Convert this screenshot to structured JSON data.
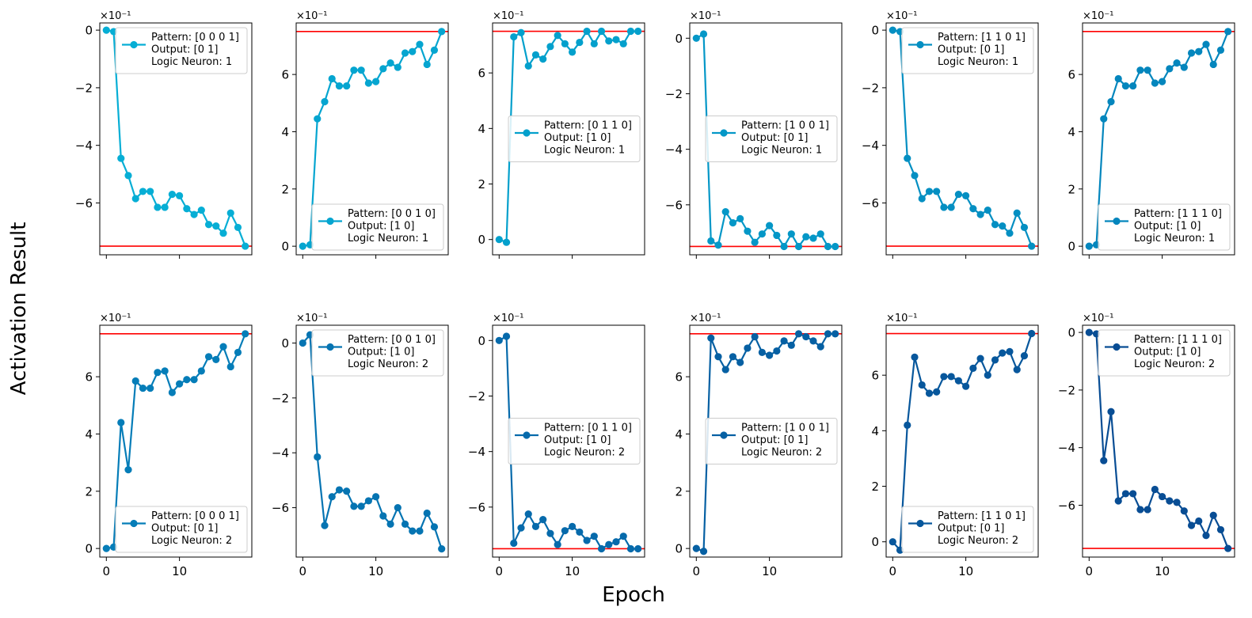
{
  "figure": {
    "xlabel": "Epoch",
    "ylabel": "Activation Result",
    "colors": {
      "threshold": "#ff0000",
      "row1_base": "#00a8cc",
      "row2_base": "#0b4f8f"
    }
  },
  "chart_data": [
    {
      "type": "line",
      "row": 0,
      "col": 0,
      "color": "#06aed5",
      "ylim": [
        -7.8,
        0.25
      ],
      "yticks": [
        0,
        -2,
        -4,
        -6
      ],
      "ytick_labels": [
        "0",
        "−2",
        "−4",
        "−6"
      ],
      "exponent_label": "×10⁻¹",
      "hlines": [
        -7.5
      ],
      "legend": [
        "Pattern: [0 0 0 1]",
        "Output: [0 1]",
        "Logic Neuron: 1"
      ],
      "legend_loc": "upper right",
      "x": [
        0,
        1,
        2,
        3,
        4,
        5,
        6,
        7,
        8,
        9,
        10,
        11,
        12,
        13,
        14,
        15,
        16,
        17,
        18,
        19
      ],
      "values": [
        0,
        -0.05,
        -4.45,
        -5.05,
        -5.85,
        -5.6,
        -5.6,
        -6.15,
        -6.15,
        -5.7,
        -5.75,
        -6.2,
        -6.4,
        -6.25,
        -6.75,
        -6.8,
        -7.05,
        -6.35,
        -6.85,
        -7.5
      ]
    },
    {
      "type": "line",
      "row": 0,
      "col": 1,
      "color": "#05a5d0",
      "ylim": [
        -0.3,
        7.8
      ],
      "yticks": [
        0,
        2,
        4,
        6
      ],
      "ytick_labels": [
        "0",
        "2",
        "4",
        "6"
      ],
      "exponent_label": "×10⁻¹",
      "hlines": [
        7.5
      ],
      "legend": [
        "Pattern: [0 0 1 0]",
        "Output: [1 0]",
        "Logic Neuron: 1"
      ],
      "legend_loc": "lower right",
      "x": [
        0,
        1,
        2,
        3,
        4,
        5,
        6,
        7,
        8,
        9,
        10,
        11,
        12,
        13,
        14,
        15,
        16,
        17,
        18,
        19
      ],
      "values": [
        0,
        0.05,
        4.45,
        5.05,
        5.85,
        5.6,
        5.6,
        6.15,
        6.15,
        5.7,
        5.75,
        6.2,
        6.4,
        6.25,
        6.75,
        6.8,
        7.05,
        6.35,
        6.85,
        7.5
      ]
    },
    {
      "type": "line",
      "row": 0,
      "col": 2,
      "color": "#03a0cc",
      "ylim": [
        -0.55,
        7.8
      ],
      "yticks": [
        0,
        2,
        4,
        6
      ],
      "ytick_labels": [
        "0",
        "2",
        "4",
        "6"
      ],
      "exponent_label": "×10⁻¹",
      "hlines": [
        7.5
      ],
      "legend": [
        "Pattern: [0 1 1 0]",
        "Output: [1 0]",
        "Logic Neuron: 1"
      ],
      "legend_loc": "center right",
      "x": [
        0,
        1,
        2,
        3,
        4,
        5,
        6,
        7,
        8,
        9,
        10,
        11,
        12,
        13,
        14,
        15,
        16,
        17,
        18,
        19
      ],
      "values": [
        0,
        -0.1,
        7.3,
        7.45,
        6.25,
        6.65,
        6.5,
        6.95,
        7.35,
        7.05,
        6.75,
        7.1,
        7.5,
        7.05,
        7.5,
        7.15,
        7.2,
        7.05,
        7.5,
        7.5
      ]
    },
    {
      "type": "line",
      "row": 0,
      "col": 3,
      "color": "#0497c7",
      "ylim": [
        -7.8,
        0.55
      ],
      "yticks": [
        0,
        -2,
        -4,
        -6
      ],
      "ytick_labels": [
        "0",
        "−2",
        "−4",
        "−6"
      ],
      "exponent_label": "×10⁻¹",
      "hlines": [
        -7.5
      ],
      "legend": [
        "Pattern: [1 0 0 1]",
        "Output: [0 1]",
        "Logic Neuron: 1"
      ],
      "legend_loc": "center right",
      "x": [
        0,
        1,
        2,
        3,
        4,
        5,
        6,
        7,
        8,
        9,
        10,
        11,
        12,
        13,
        14,
        15,
        16,
        17,
        18,
        19
      ],
      "values": [
        0,
        0.15,
        -7.3,
        -7.45,
        -6.25,
        -6.65,
        -6.5,
        -6.95,
        -7.35,
        -7.05,
        -6.75,
        -7.1,
        -7.5,
        -7.05,
        -7.5,
        -7.15,
        -7.2,
        -7.05,
        -7.5,
        -7.5
      ]
    },
    {
      "type": "line",
      "row": 0,
      "col": 4,
      "color": "#048fc2",
      "ylim": [
        -7.8,
        0.25
      ],
      "yticks": [
        0,
        -2,
        -4,
        -6
      ],
      "ytick_labels": [
        "0",
        "−2",
        "−4",
        "−6"
      ],
      "exponent_label": "×10⁻¹",
      "hlines": [
        -7.5
      ],
      "legend": [
        "Pattern: [1 1 0 1]",
        "Output: [0 1]",
        "Logic Neuron: 1"
      ],
      "legend_loc": "upper right",
      "x": [
        0,
        1,
        2,
        3,
        4,
        5,
        6,
        7,
        8,
        9,
        10,
        11,
        12,
        13,
        14,
        15,
        16,
        17,
        18,
        19
      ],
      "values": [
        0,
        -0.05,
        -4.45,
        -5.05,
        -5.85,
        -5.6,
        -5.6,
        -6.15,
        -6.15,
        -5.7,
        -5.75,
        -6.2,
        -6.4,
        -6.25,
        -6.75,
        -6.8,
        -7.05,
        -6.35,
        -6.85,
        -7.5
      ]
    },
    {
      "type": "line",
      "row": 0,
      "col": 5,
      "color": "#0486bd",
      "ylim": [
        -0.3,
        7.8
      ],
      "yticks": [
        0,
        2,
        4,
        6
      ],
      "ytick_labels": [
        "0",
        "2",
        "4",
        "6"
      ],
      "exponent_label": "×10⁻¹",
      "hlines": [
        7.5
      ],
      "legend": [
        "Pattern: [1 1 1 0]",
        "Output: [1 0]",
        "Logic Neuron: 1"
      ],
      "legend_loc": "lower right",
      "x": [
        0,
        1,
        2,
        3,
        4,
        5,
        6,
        7,
        8,
        9,
        10,
        11,
        12,
        13,
        14,
        15,
        16,
        17,
        18,
        19
      ],
      "values": [
        0,
        0.05,
        4.45,
        5.05,
        5.85,
        5.6,
        5.6,
        6.15,
        6.15,
        5.7,
        5.75,
        6.2,
        6.4,
        6.25,
        6.75,
        6.8,
        7.05,
        6.35,
        6.85,
        7.5
      ]
    },
    {
      "type": "line",
      "row": 1,
      "col": 0,
      "color": "#057db8",
      "ylim": [
        -0.3,
        7.8
      ],
      "yticks": [
        0,
        2,
        4,
        6
      ],
      "ytick_labels": [
        "0",
        "2",
        "4",
        "6"
      ],
      "exponent_label": "×10⁻¹",
      "hlines": [
        7.5
      ],
      "legend": [
        "Pattern: [0 0 0 1]",
        "Output: [0 1]",
        "Logic Neuron: 2"
      ],
      "legend_loc": "lower right",
      "x": [
        0,
        1,
        2,
        3,
        4,
        5,
        6,
        7,
        8,
        9,
        10,
        11,
        12,
        13,
        14,
        15,
        16,
        17,
        18,
        19
      ],
      "values": [
        0,
        0.05,
        4.4,
        2.75,
        5.85,
        5.6,
        5.6,
        6.15,
        6.2,
        5.45,
        5.75,
        5.9,
        5.9,
        6.2,
        6.7,
        6.6,
        7.05,
        6.35,
        6.85,
        7.5
      ]
    },
    {
      "type": "line",
      "row": 1,
      "col": 1,
      "color": "#0574b2",
      "ylim": [
        -7.8,
        0.65
      ],
      "yticks": [
        0,
        -2,
        -4,
        -6
      ],
      "ytick_labels": [
        "0",
        "−2",
        "−4",
        "−6"
      ],
      "exponent_label": "×10⁻¹",
      "hlines": [],
      "legend": [
        "Pattern: [0 0 1 0]",
        "Output: [1 0]",
        "Logic Neuron: 2"
      ],
      "legend_loc": "upper right",
      "x": [
        0,
        1,
        2,
        3,
        4,
        5,
        6,
        7,
        8,
        9,
        10,
        11,
        12,
        13,
        14,
        15,
        16,
        17,
        18,
        19
      ],
      "values": [
        0,
        0.3,
        -4.15,
        -6.65,
        -5.6,
        -5.35,
        -5.4,
        -5.95,
        -5.95,
        -5.75,
        -5.6,
        -6.3,
        -6.6,
        -6.0,
        -6.6,
        -6.85,
        -6.85,
        -6.2,
        -6.7,
        -7.5
      ]
    },
    {
      "type": "line",
      "row": 1,
      "col": 2,
      "color": "#066aab",
      "ylim": [
        -7.8,
        0.55
      ],
      "yticks": [
        0,
        -2,
        -4,
        -6
      ],
      "ytick_labels": [
        "0",
        "−2",
        "−4",
        "−6"
      ],
      "exponent_label": "×10⁻¹",
      "hlines": [
        -7.5
      ],
      "legend": [
        "Pattern: [0 1 1 0]",
        "Output: [1 0]",
        "Logic Neuron: 2"
      ],
      "legend_loc": "center right",
      "x": [
        0,
        1,
        2,
        3,
        4,
        5,
        6,
        7,
        8,
        9,
        10,
        11,
        12,
        13,
        14,
        15,
        16,
        17,
        18,
        19
      ],
      "values": [
        0,
        0.15,
        -7.3,
        -6.75,
        -6.25,
        -6.7,
        -6.45,
        -6.95,
        -7.35,
        -6.85,
        -6.7,
        -6.9,
        -7.2,
        -7.05,
        -7.5,
        -7.35,
        -7.25,
        -7.05,
        -7.5,
        -7.5
      ]
    },
    {
      "type": "line",
      "row": 1,
      "col": 3,
      "color": "#0660a3",
      "ylim": [
        -0.3,
        7.8
      ],
      "yticks": [
        0,
        2,
        4,
        6
      ],
      "ytick_labels": [
        "0",
        "2",
        "4",
        "6"
      ],
      "exponent_label": "×10⁻¹",
      "hlines": [
        7.5
      ],
      "legend": [
        "Pattern: [1 0 0 1]",
        "Output: [0 1]",
        "Logic Neuron: 2"
      ],
      "legend_loc": "center right",
      "x": [
        0,
        1,
        2,
        3,
        4,
        5,
        6,
        7,
        8,
        9,
        10,
        11,
        12,
        13,
        14,
        15,
        16,
        17,
        18,
        19
      ],
      "values": [
        0,
        -0.1,
        7.35,
        6.7,
        6.25,
        6.7,
        6.5,
        7.0,
        7.4,
        6.85,
        6.75,
        6.9,
        7.25,
        7.1,
        7.5,
        7.4,
        7.25,
        7.05,
        7.5,
        7.5
      ]
    },
    {
      "type": "line",
      "row": 1,
      "col": 4,
      "color": "#07579c",
      "ylim": [
        -0.55,
        7.8
      ],
      "yticks": [
        0,
        2,
        4,
        6
      ],
      "ytick_labels": [
        "0",
        "2",
        "4",
        "6"
      ],
      "exponent_label": "×10⁻¹",
      "hlines": [
        7.5
      ],
      "legend": [
        "Pattern: [1 1 0 1]",
        "Output: [0 1]",
        "Logic Neuron: 2"
      ],
      "legend_loc": "lower right",
      "x": [
        0,
        1,
        2,
        3,
        4,
        5,
        6,
        7,
        8,
        9,
        10,
        11,
        12,
        13,
        14,
        15,
        16,
        17,
        18,
        19
      ],
      "values": [
        0,
        -0.3,
        4.2,
        6.65,
        5.65,
        5.35,
        5.4,
        5.95,
        5.95,
        5.8,
        5.6,
        6.25,
        6.6,
        6.0,
        6.55,
        6.8,
        6.85,
        6.2,
        6.7,
        7.5
      ]
    },
    {
      "type": "line",
      "row": 1,
      "col": 5,
      "color": "#084d94",
      "ylim": [
        -7.8,
        0.25
      ],
      "yticks": [
        0,
        -2,
        -4,
        -6
      ],
      "ytick_labels": [
        "0",
        "−2",
        "−4",
        "−6"
      ],
      "exponent_label": "×10⁻¹",
      "hlines": [
        -7.5
      ],
      "legend": [
        "Pattern: [1 1 1 0]",
        "Output: [1 0]",
        "Logic Neuron: 2"
      ],
      "legend_loc": "upper right",
      "x": [
        0,
        1,
        2,
        3,
        4,
        5,
        6,
        7,
        8,
        9,
        10,
        11,
        12,
        13,
        14,
        15,
        16,
        17,
        18,
        19
      ],
      "values": [
        0,
        -0.05,
        -4.45,
        -2.75,
        -5.85,
        -5.6,
        -5.6,
        -6.15,
        -6.15,
        -5.45,
        -5.7,
        -5.85,
        -5.9,
        -6.2,
        -6.7,
        -6.55,
        -7.05,
        -6.35,
        -6.85,
        -7.5
      ]
    }
  ]
}
